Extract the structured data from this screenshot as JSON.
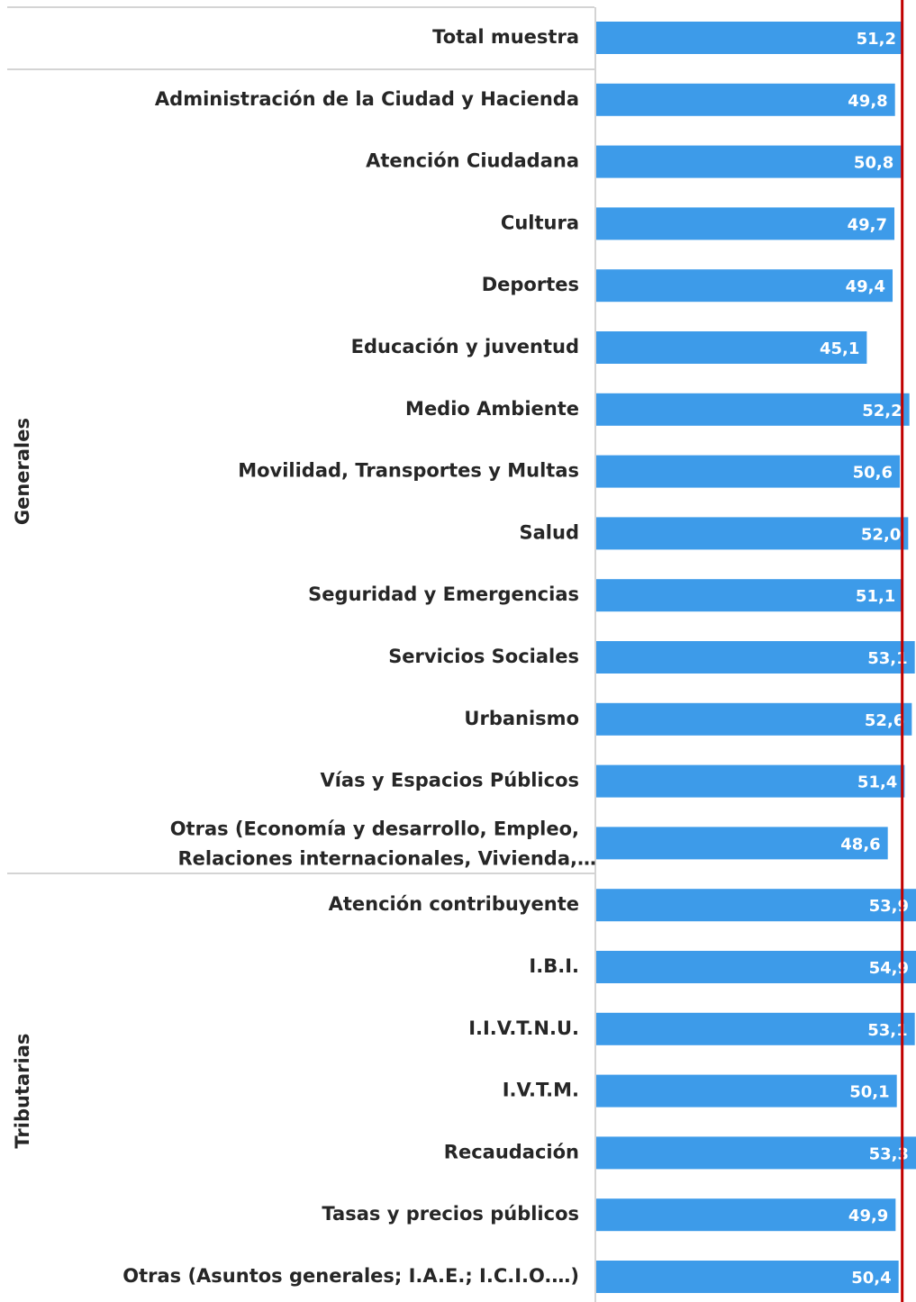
{
  "chart_data": {
    "type": "bar",
    "orientation": "horizontal",
    "groups": [
      "Generales",
      "Tributarias"
    ],
    "categories": [
      "Total muestra",
      "Administración de la Ciudad y Hacienda",
      "Atención Ciudadana",
      "Cultura",
      "Deportes",
      "Educación y juventud",
      "Medio Ambiente",
      "Movilidad, Transportes y Multas",
      "Salud",
      "Seguridad y Emergencias",
      "Servicios Sociales",
      "Urbanismo",
      "Vías y Espacios Públicos",
      [
        "Otras (Economía y desarrollo, Empleo,",
        "Relaciones internacionales, Vivienda,…"
      ],
      "Atención contribuyente",
      "I.B.I.",
      "I.I.V.T.N.U.",
      "I.V.T.M.",
      "Recaudación",
      "Tasas y precios públicos",
      "Otras (Asuntos generales; I.A.E.; I.C.I.O.…)"
    ],
    "values": [
      51.2,
      49.8,
      50.8,
      49.7,
      49.4,
      45.1,
      52.2,
      50.6,
      52.0,
      51.1,
      53.1,
      52.6,
      51.4,
      48.6,
      53.9,
      54.9,
      53.1,
      50.1,
      53.3,
      49.9,
      50.4
    ],
    "value_labels": [
      "51,2",
      "49,8",
      "50,8",
      "49,7",
      "49,4",
      "45,1",
      "52,2",
      "50,6",
      "52,0",
      "51,1",
      "53,1",
      "52,6",
      "51,4",
      "48,6",
      "53,9",
      "54,9",
      "53,1",
      "50,1",
      "53,3",
      "49,9",
      "50,4"
    ],
    "color": "#3d9be9",
    "reference_line": {
      "value": 51.0,
      "color": "#c00000"
    },
    "xlim": [
      0,
      53.3
    ]
  }
}
